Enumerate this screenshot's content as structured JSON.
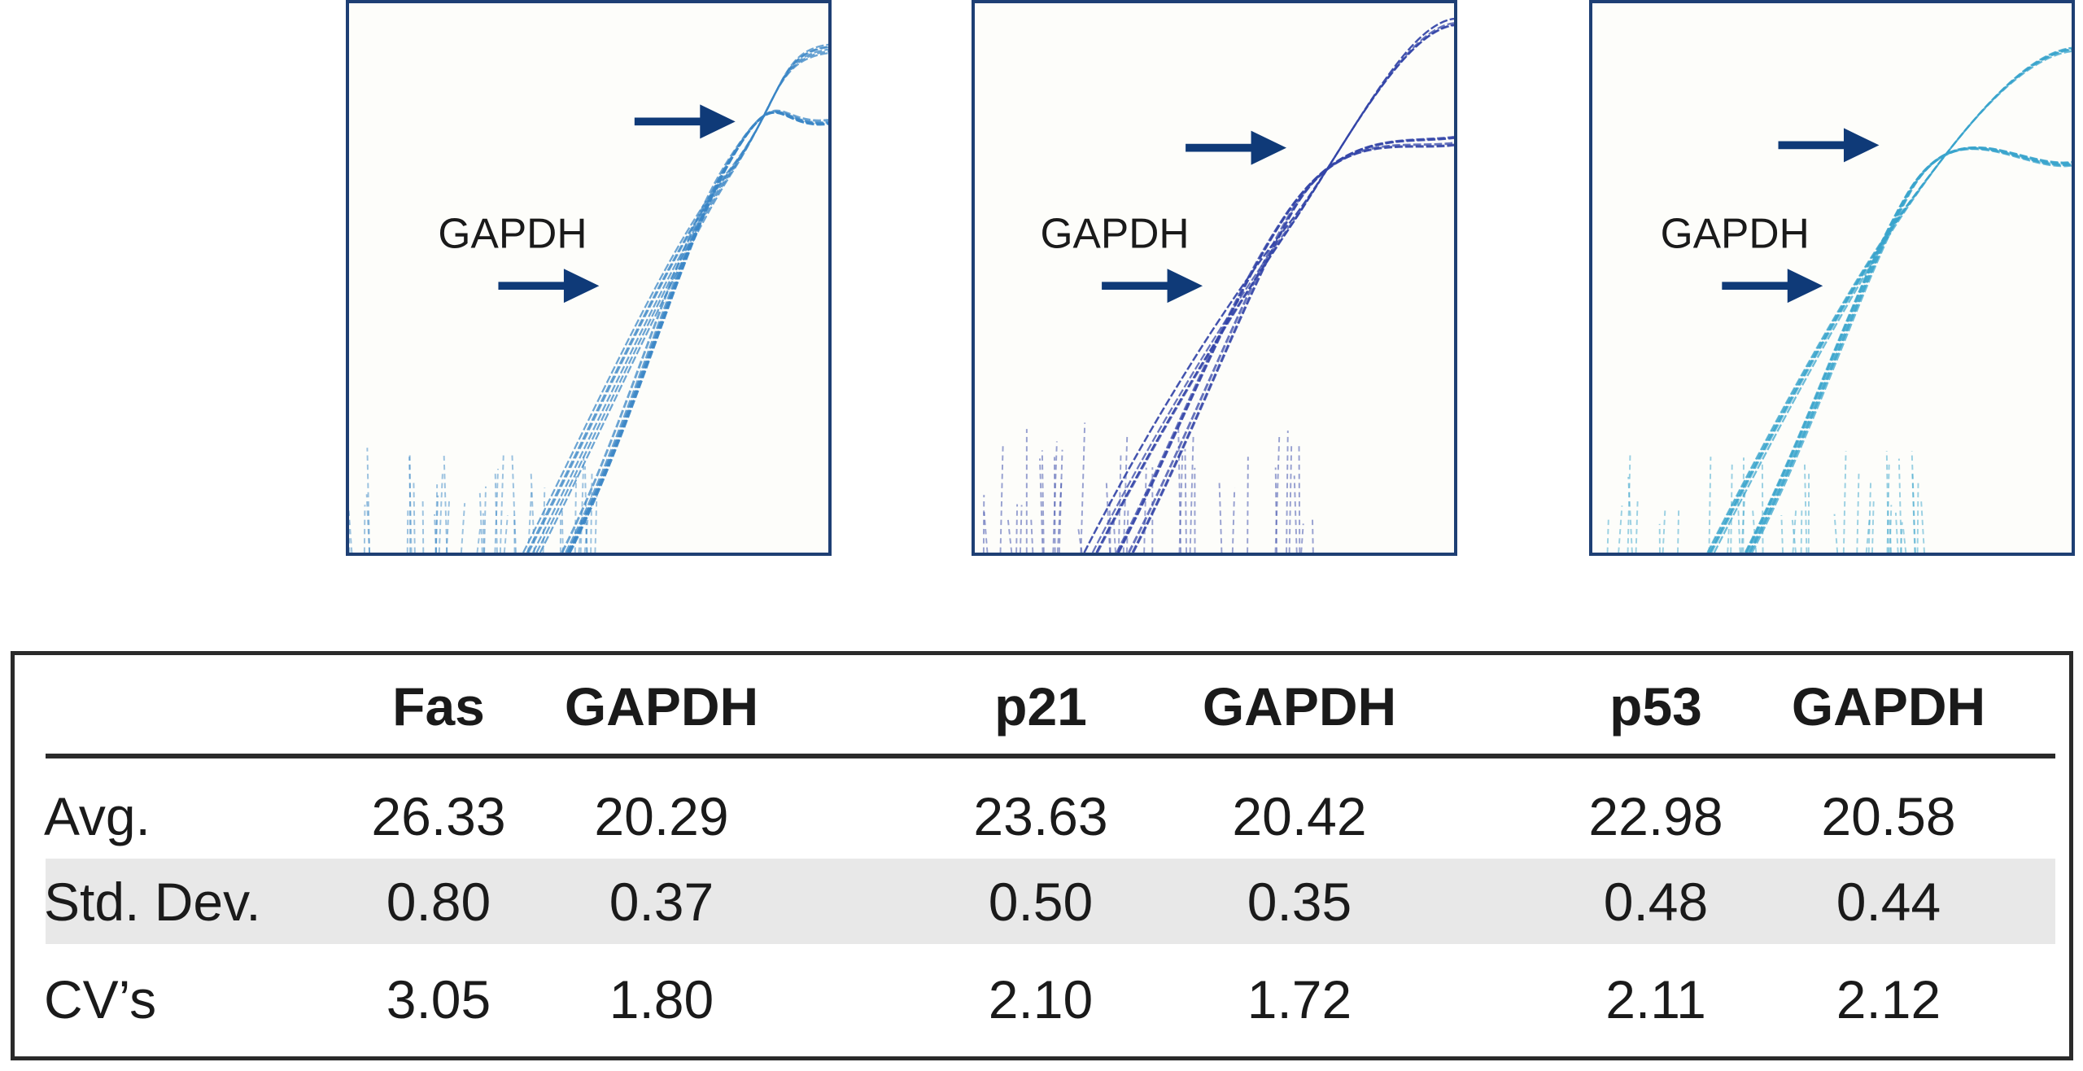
{
  "panels": [
    {
      "label": "GAPDH",
      "color": "#3a86c6",
      "arrows": 2
    },
    {
      "label": "GAPDH",
      "color": "#3446a8",
      "arrows": 2
    },
    {
      "label": "GAPDH",
      "color": "#3aa4cc",
      "arrows": 2
    }
  ],
  "colors": {
    "border": "#1e3f74",
    "arrow": "#0f3a78",
    "band": "#e8e8e8"
  },
  "chart_data": {
    "type": "table",
    "columns": [
      "",
      "Fas",
      "GAPDH",
      "p21",
      "GAPDH",
      "p53",
      "GAPDH"
    ],
    "rows": [
      {
        "label": "Avg.",
        "values": [
          "26.33",
          "20.29",
          "23.63",
          "20.42",
          "22.98",
          "20.58"
        ]
      },
      {
        "label": "Std. Dev.",
        "values": [
          "0.80",
          "0.37",
          "0.50",
          "0.35",
          "0.48",
          "0.44"
        ]
      },
      {
        "label": "CV’s",
        "values": [
          "3.05",
          "1.80",
          "2.10",
          "1.72",
          "2.11",
          "2.12"
        ]
      }
    ]
  }
}
